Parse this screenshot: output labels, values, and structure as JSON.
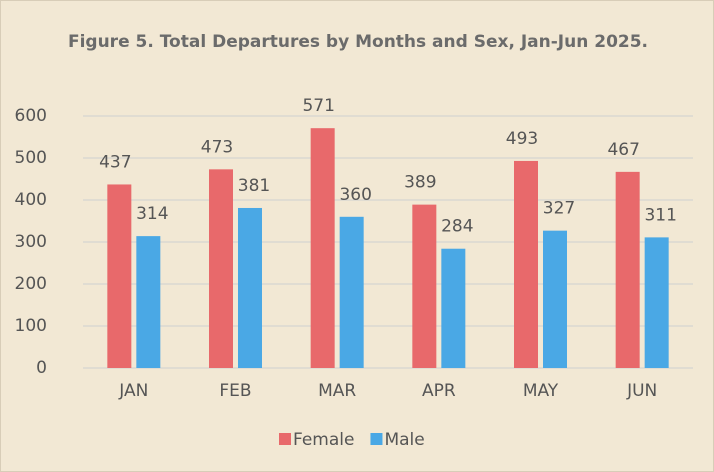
{
  "chart_data": {
    "type": "bar",
    "title": "Figure 5. Total Departures by Months and Sex, Jan-Jun 2025.",
    "categories": [
      "JAN",
      "FEB",
      "MAR",
      "APR",
      "MAY",
      "JUN"
    ],
    "series": [
      {
        "name": "Female",
        "color": "#e8696b",
        "values": [
          437,
          473,
          571,
          389,
          493,
          467
        ]
      },
      {
        "name": "Male",
        "color": "#4aa8e5",
        "values": [
          314,
          381,
          360,
          284,
          327,
          311
        ]
      }
    ],
    "ylim": [
      0,
      600
    ],
    "yticks": [
      0,
      100,
      200,
      300,
      400,
      500,
      600
    ],
    "grid": true,
    "legend": "bottom"
  }
}
